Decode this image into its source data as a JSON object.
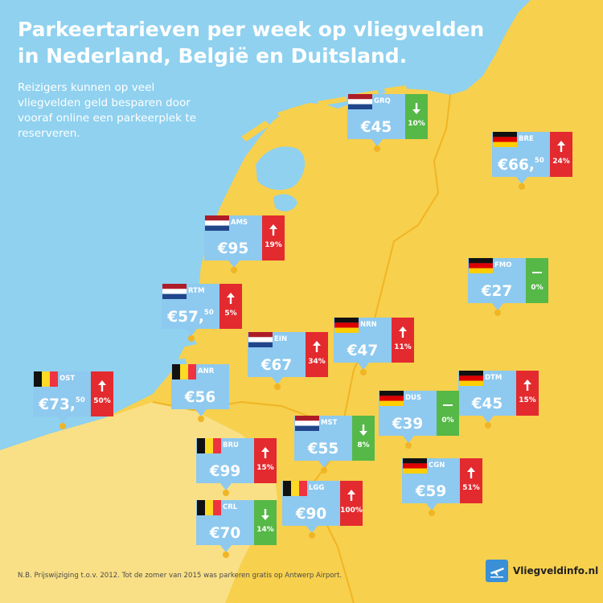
{
  "header": {
    "title": "Parkeertarieven per week op vliegvelden in Nederland, België en Duitsland.",
    "subtitle": "Reizigers kunnen op veel vliegvelden geld besparen door vooraf online een parkeerplek te reserveren."
  },
  "footer": {
    "footnote": "N.B. Prijswijziging t.o.v. 2012. Tot de zomer van 2015 was parkeren gratis op Antwerp Airport.",
    "logo_text": "Vliegveldinfo.nl",
    "logo_icon": "plane-icon"
  },
  "colors": {
    "sea": "#8fd1ef",
    "land": "#f7d04d",
    "card": "#8ec9ef",
    "increase": "#e32a2f",
    "decrease": "#55b847",
    "marker": "#f0b525"
  },
  "airports": [
    {
      "code": "GRQ",
      "country": "NL",
      "price": "€45",
      "cents": "",
      "change": "10%",
      "trend": "down"
    },
    {
      "code": "BRE",
      "country": "DE",
      "price": "€66,",
      "cents": "50",
      "change": "24%",
      "trend": "up"
    },
    {
      "code": "AMS",
      "country": "NL",
      "price": "€95",
      "cents": "",
      "change": "19%",
      "trend": "up"
    },
    {
      "code": "FMO",
      "country": "DE",
      "price": "€27",
      "cents": "",
      "change": "0%",
      "trend": "flat"
    },
    {
      "code": "RTM",
      "country": "NL",
      "price": "€57,",
      "cents": "50",
      "change": "5%",
      "trend": "up"
    },
    {
      "code": "NRN",
      "country": "DE",
      "price": "€47",
      "cents": "",
      "change": "11%",
      "trend": "up"
    },
    {
      "code": "EIN",
      "country": "NL",
      "price": "€67",
      "cents": "",
      "change": "34%",
      "trend": "up"
    },
    {
      "code": "OST",
      "country": "BE",
      "price": "€73,",
      "cents": "50",
      "change": "50%",
      "trend": "up"
    },
    {
      "code": "ANR",
      "country": "BE",
      "price": "€56",
      "cents": "",
      "change": "",
      "trend": "none"
    },
    {
      "code": "DTM",
      "country": "DE",
      "price": "€45",
      "cents": "",
      "change": "15%",
      "trend": "up"
    },
    {
      "code": "DUS",
      "country": "DE",
      "price": "€39",
      "cents": "",
      "change": "0%",
      "trend": "flat"
    },
    {
      "code": "MST",
      "country": "NL",
      "price": "€55",
      "cents": "",
      "change": "8%",
      "trend": "down"
    },
    {
      "code": "BRU",
      "country": "BE",
      "price": "€99",
      "cents": "",
      "change": "15%",
      "trend": "up"
    },
    {
      "code": "CGN",
      "country": "DE",
      "price": "€59",
      "cents": "",
      "change": "51%",
      "trend": "up"
    },
    {
      "code": "LGG",
      "country": "BE",
      "price": "€90",
      "cents": "",
      "change": "100%",
      "trend": "up"
    },
    {
      "code": "CRL",
      "country": "BE",
      "price": "€70",
      "cents": "",
      "change": "14%",
      "trend": "down"
    }
  ]
}
